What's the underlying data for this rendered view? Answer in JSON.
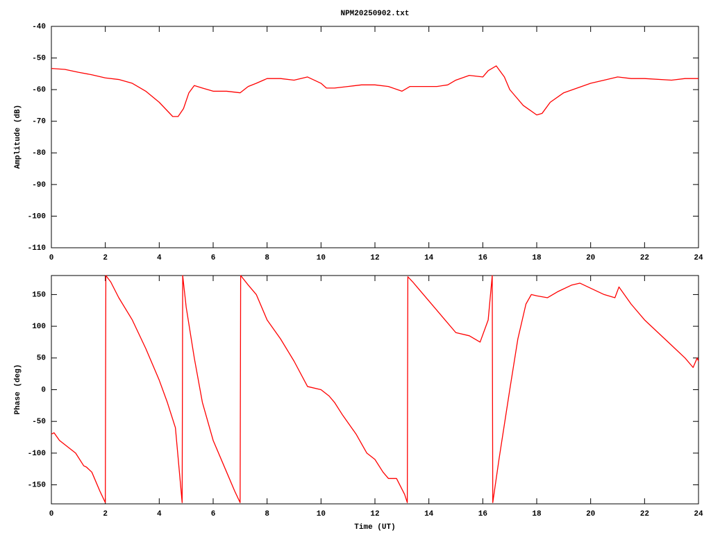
{
  "chart_data": [
    {
      "type": "line",
      "title": "NPM20250902.txt",
      "y_label": "Amplitude (dB)",
      "color": "#ff0000",
      "xlim": [
        0,
        24
      ],
      "xticks": [
        0,
        2,
        4,
        6,
        8,
        10,
        12,
        14,
        16,
        18,
        20,
        22,
        24
      ],
      "ylim": [
        -110,
        -40
      ],
      "yticks": [
        -110,
        -100,
        -90,
        -80,
        -70,
        -60,
        -50,
        -40
      ],
      "x": [
        0,
        0.5,
        1,
        1.5,
        2,
        2.5,
        3,
        3.5,
        4,
        4.5,
        4.7,
        4.9,
        5.1,
        5.3,
        5.6,
        6,
        6.5,
        7,
        7.3,
        7.6,
        8,
        8.5,
        9,
        9.5,
        10,
        10.2,
        10.5,
        11,
        11.5,
        12,
        12.5,
        13,
        13.3,
        13.8,
        14.3,
        14.7,
        15,
        15.5,
        16,
        16.2,
        16.5,
        16.8,
        17,
        17.2,
        17.5,
        18,
        18.2,
        18.5,
        19,
        19.5,
        20,
        20.5,
        21,
        21.5,
        22,
        23,
        23.5,
        24
      ],
      "values": [
        -53.3,
        -53.6,
        -54.5,
        -55.3,
        -56.3,
        -56.8,
        -58,
        -60.5,
        -64,
        -68.5,
        -68.5,
        -66,
        -61,
        -58.7,
        -59.5,
        -60.5,
        -60.5,
        -61,
        -59,
        -58,
        -56.5,
        -56.5,
        -57,
        -56,
        -58,
        -59.5,
        -59.5,
        -59,
        -58.5,
        -58.5,
        -59,
        -60.5,
        -59,
        -59,
        -59,
        -58.5,
        -57,
        -55.5,
        -56,
        -54,
        -52.5,
        -56,
        -60,
        -62,
        -65,
        -68,
        -67.5,
        -64,
        -61,
        -59.5,
        -58,
        -57,
        -56,
        -56.5,
        -56.5,
        -57,
        -56.5,
        -56.5
      ]
    },
    {
      "type": "line",
      "y_label": "Phase (deg)",
      "x_label": "Time (UT)",
      "color": "#ff0000",
      "xlim": [
        0,
        24
      ],
      "xticks": [
        0,
        2,
        4,
        6,
        8,
        10,
        12,
        14,
        16,
        18,
        20,
        22,
        24
      ],
      "ylim": [
        -180,
        180
      ],
      "yticks": [
        -150,
        -100,
        -50,
        0,
        50,
        100,
        150
      ],
      "x": [
        0,
        0.1,
        0.3,
        0.6,
        0.9,
        1.2,
        1.3,
        1.5,
        1.8,
        2.0,
        2.02,
        2.2,
        2.5,
        3,
        3.5,
        4,
        4.3,
        4.6,
        4.85,
        4.87,
        5,
        5.3,
        5.6,
        6,
        6.5,
        6.8,
        7,
        7.02,
        7.3,
        7.6,
        8,
        8.5,
        9,
        9.5,
        10,
        10.3,
        10.5,
        10.8,
        11.3,
        11.7,
        12,
        12.3,
        12.5,
        12.8,
        13.1,
        13.2,
        13.22,
        13.4,
        13.6,
        14,
        14.5,
        15,
        15.5,
        15.9,
        16.2,
        16.35,
        16.37,
        16.6,
        17,
        17.3,
        17.6,
        17.8,
        18,
        18.4,
        18.8,
        19.3,
        19.6,
        20,
        20.5,
        20.9,
        21.05,
        21.5,
        22,
        22.5,
        23,
        23.5,
        23.8,
        23.95,
        24
      ],
      "values": [
        -70,
        -68,
        -80,
        -90,
        -100,
        -120,
        -122,
        -130,
        -160,
        -178,
        180,
        170,
        145,
        110,
        65,
        15,
        -20,
        -60,
        -178,
        180,
        130,
        50,
        -20,
        -80,
        -130,
        -160,
        -178,
        180,
        165,
        150,
        110,
        80,
        45,
        5,
        0,
        -10,
        -20,
        -40,
        -70,
        -100,
        -110,
        -130,
        -140,
        -140,
        -165,
        -178,
        178,
        170,
        160,
        140,
        115,
        90,
        85,
        75,
        110,
        180,
        -178,
        -110,
        0,
        80,
        135,
        150,
        148,
        145,
        155,
        165,
        168,
        160,
        150,
        145,
        162,
        135,
        110,
        90,
        70,
        50,
        35,
        50,
        45
      ]
    }
  ]
}
